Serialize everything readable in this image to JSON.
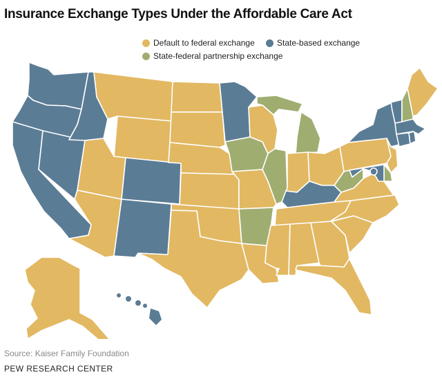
{
  "title": "Insurance Exchange Types Under the Affordable Care Act",
  "legend": [
    {
      "label": "Default to federal exchange",
      "color": "#e2b862",
      "key": "federal"
    },
    {
      "label": "State-based exchange",
      "color": "#5b7c95",
      "key": "state"
    },
    {
      "label": "State-federal partnership exchange",
      "color": "#9fae70",
      "key": "partnership"
    }
  ],
  "colors": {
    "federal": "#e2b862",
    "state": "#5b7c95",
    "partnership": "#9fae70"
  },
  "states": {
    "WA": "state",
    "OR": "state",
    "CA": "state",
    "NV": "state",
    "ID": "state",
    "CO": "state",
    "NM": "state",
    "MN": "state",
    "KY": "state",
    "NY": "state",
    "VT": "state",
    "MA": "state",
    "CT": "state",
    "RI": "state",
    "MD": "state",
    "DC": "state",
    "HI": "state",
    "IA": "partnership",
    "IL": "partnership",
    "MI": "partnership",
    "AR": "partnership",
    "WV": "partnership",
    "NH": "partnership",
    "DE": "partnership",
    "MT": "federal",
    "WY": "federal",
    "UT": "federal",
    "AZ": "federal",
    "ND": "federal",
    "SD": "federal",
    "NE": "federal",
    "KS": "federal",
    "OK": "federal",
    "TX": "federal",
    "MO": "federal",
    "LA": "federal",
    "WI": "federal",
    "IN": "federal",
    "OH": "federal",
    "TN": "federal",
    "MS": "federal",
    "AL": "federal",
    "GA": "federal",
    "FL": "federal",
    "SC": "federal",
    "NC": "federal",
    "VA": "federal",
    "PA": "federal",
    "NJ": "federal",
    "ME": "federal",
    "AK": "federal"
  },
  "source": "Source: Kaiser Family Foundation",
  "credit": "PEW RESEARCH CENTER"
}
